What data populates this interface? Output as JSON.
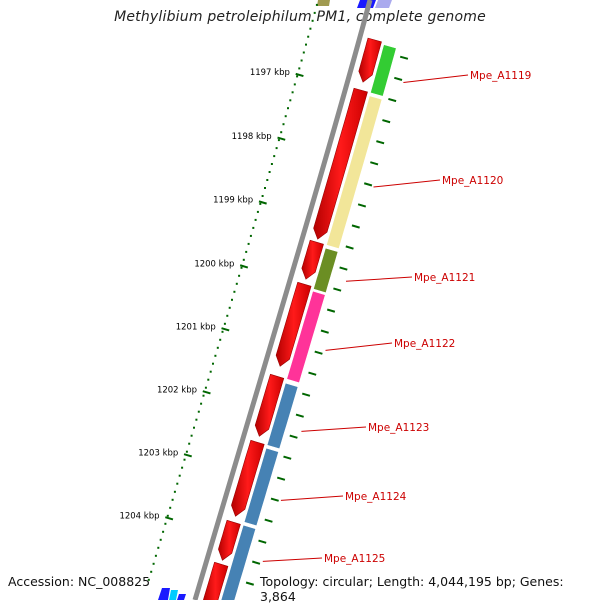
{
  "title": "Methylibium petroleiphilum PM1, complete genome",
  "footer": {
    "accession": "Accession: NC_008825",
    "summary": "Topology: circular; Length: 4,044,195 bp; Genes: 3,864"
  },
  "scale_labels": [
    "1197 kbp",
    "1198 kbp",
    "1199 kbp",
    "1200 kbp",
    "1201 kbp",
    "1202 kbp",
    "1203 kbp",
    "1204 kbp"
  ],
  "genes": [
    {
      "label": "Mpe_A1119",
      "color": "#33cc33"
    },
    {
      "label": "Mpe_A1120",
      "color": "#f2e699"
    },
    {
      "label": "Mpe_A1121",
      "color": "#6b8e23"
    },
    {
      "label": "Mpe_A1122",
      "color": "#ff3399"
    },
    {
      "label": "Mpe_A1123",
      "color": "#4682b4"
    },
    {
      "label": "Mpe_A1124",
      "color": "#4682b4"
    },
    {
      "label": "Mpe_A1125",
      "color": "#4682b4"
    }
  ],
  "colors": {
    "backbone": "#8c8c8c",
    "cds": "#ff0000",
    "tick": "#006600",
    "label": "#cc0000"
  }
}
